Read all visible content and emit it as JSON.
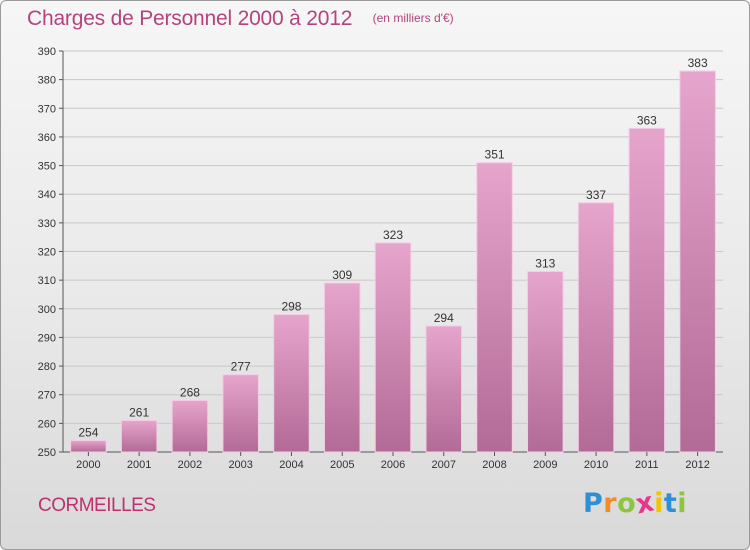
{
  "header": {
    "title": "Charges de Personnel 2000 à 2012",
    "subtitle": "(en milliers d'€)"
  },
  "footer": {
    "city": "CORMEILLES",
    "logo_text": "Proxiti",
    "logo_letters": [
      {
        "ch": "P",
        "color": "#2d8fd6"
      },
      {
        "ch": "r",
        "color": "#f28c28"
      },
      {
        "ch": "o",
        "color": "#8cc63f"
      },
      {
        "ch": "x",
        "color": "#e8368f"
      },
      {
        "ch": "i",
        "color": "#f5c400"
      },
      {
        "ch": "t",
        "color": "#2d8fd6"
      },
      {
        "ch": "i",
        "color": "#8cc63f"
      }
    ]
  },
  "colors": {
    "bar_top": "#e6a5cc",
    "bar_bottom": "#b26a96",
    "bar_edge": "#f3cde3",
    "grid": "#c8c8c8",
    "axis": "#555555",
    "title": "#b2447e"
  },
  "chart_data": {
    "type": "bar",
    "title": "Charges de Personnel 2000 à 2012",
    "subtitle": "(en milliers d'€)",
    "categories": [
      "2000",
      "2001",
      "2002",
      "2003",
      "2004",
      "2005",
      "2006",
      "2007",
      "2008",
      "2009",
      "2010",
      "2011",
      "2012"
    ],
    "values": [
      254,
      261,
      268,
      277,
      298,
      309,
      323,
      294,
      351,
      313,
      337,
      363,
      383
    ],
    "ylim": [
      250,
      390
    ],
    "yticks": [
      250,
      260,
      270,
      280,
      290,
      300,
      310,
      320,
      330,
      340,
      350,
      360,
      370,
      380,
      390
    ],
    "grid": true,
    "legend": "none"
  }
}
